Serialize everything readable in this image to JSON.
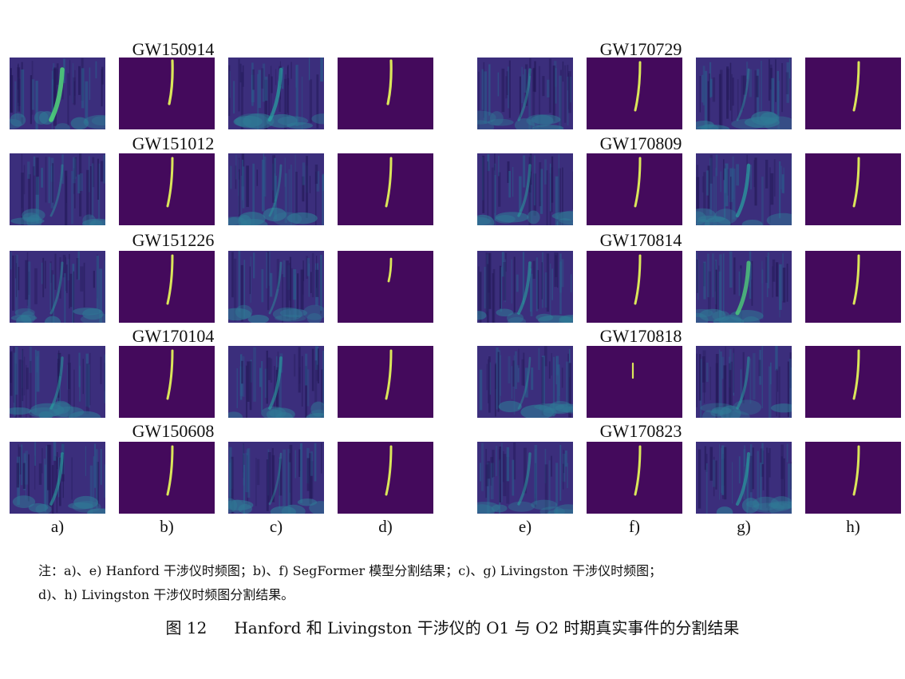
{
  "colors": {
    "background": "#45095a",
    "spectrogram_base": "#3b2e7c",
    "mask_background": "#440a5c",
    "mask_track": "#dbe65a",
    "signal_cyan": "#27a8a2",
    "signal_green": "#4fd17a"
  },
  "groups": [
    {
      "column_labels": [
        "a)",
        "b)",
        "c)",
        "d)"
      ],
      "events": [
        {
          "name": "GW150914",
          "hanford_signal": 0.9,
          "livingston_signal": 0.6,
          "seg_h": "strong",
          "seg_l": "strong"
        },
        {
          "name": "GW151012",
          "hanford_signal": 0.2,
          "livingston_signal": 0.2,
          "seg_h": "normal",
          "seg_l": "normal"
        },
        {
          "name": "GW151226",
          "hanford_signal": 0.25,
          "livingston_signal": 0.2,
          "seg_h": "normal",
          "seg_l": "short"
        },
        {
          "name": "GW170104",
          "hanford_signal": 0.35,
          "livingston_signal": 0.45,
          "seg_h": "normal",
          "seg_l": "normal"
        },
        {
          "name": "GW150608",
          "hanford_signal": 0.45,
          "livingston_signal": 0.15,
          "seg_h": "normal",
          "seg_l": "normal"
        }
      ]
    },
    {
      "column_labels": [
        "e)",
        "f)",
        "g)",
        "h)"
      ],
      "events": [
        {
          "name": "GW170729",
          "hanford_signal": 0.3,
          "livingston_signal": 0.2,
          "seg_h": "normal",
          "seg_l": "normal"
        },
        {
          "name": "GW170809",
          "hanford_signal": 0.35,
          "livingston_signal": 0.6,
          "seg_h": "normal",
          "seg_l": "normal"
        },
        {
          "name": "GW170814",
          "hanford_signal": 0.45,
          "livingston_signal": 0.75,
          "seg_h": "normal",
          "seg_l": "normal"
        },
        {
          "name": "GW170818",
          "hanford_signal": 0.15,
          "livingston_signal": 0.35,
          "seg_h": "fragment",
          "seg_l": "normal"
        },
        {
          "name": "GW170823",
          "hanford_signal": 0.35,
          "livingston_signal": 0.5,
          "seg_h": "normal",
          "seg_l": "normal"
        }
      ]
    }
  ],
  "note": {
    "line1": "注：a)、e) Hanford 干涉仪时频图；b)、f) SegFormer 模型分割结果；c)、g) Livingston 干涉仪时频图；",
    "line2": "d)、h) Livingston 干涉仪时频图分割结果。"
  },
  "caption": {
    "number": "图 12",
    "text": "Hanford 和 Livingston 干涉仪的 O1 与 O2 时期真实事件的分割结果"
  }
}
